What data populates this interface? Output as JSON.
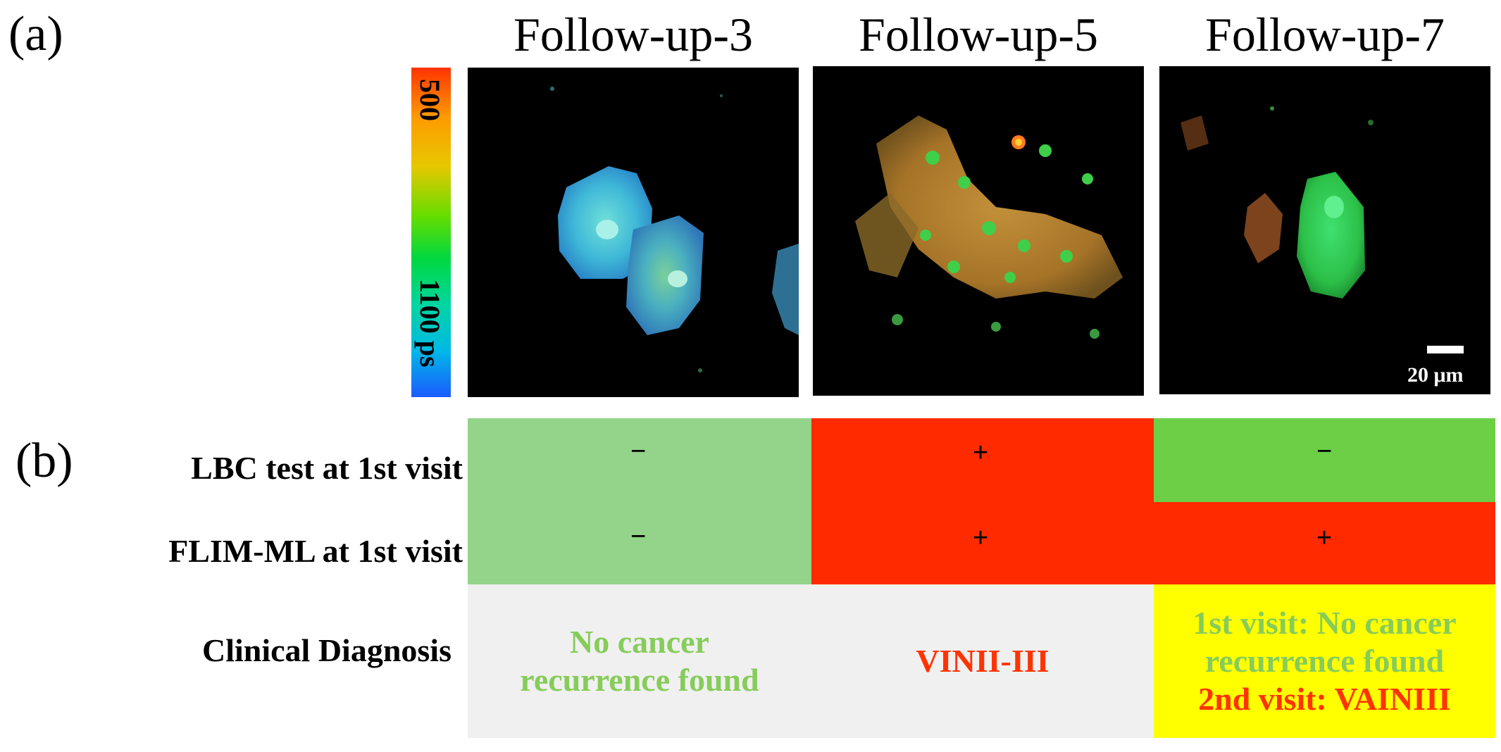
{
  "panel_a_label": "(a)",
  "panel_b_label": "(b)",
  "columns": [
    {
      "title": "Follow-up-3"
    },
    {
      "title": "Follow-up-5"
    },
    {
      "title": "Follow-up-7"
    }
  ],
  "colorbar": {
    "top_label": "500",
    "bottom_label": "1100 ps"
  },
  "scale_bar_label": "20 μm",
  "table": {
    "rows": [
      {
        "label": "LBC test at 1st visit",
        "values": [
          "−",
          "+",
          "−"
        ]
      },
      {
        "label": "FLIM-ML at 1st visit",
        "values": [
          "−",
          "+",
          "+"
        ]
      }
    ],
    "diagnosis_label": "Clinical Diagnosis",
    "diagnosis": [
      {
        "lines": [
          "No cancer",
          "recurrence found"
        ]
      },
      {
        "lines": [
          "VINII-III"
        ]
      },
      {
        "lines": [
          "1st visit: No cancer",
          "recurrence found",
          "2nd visit: VAINIII"
        ]
      }
    ]
  },
  "colors": {
    "negative_light_green": "#94d38a",
    "negative_green": "#6ccf46",
    "positive_red": "#ff2a00",
    "diagnosis_gray": "#f0f0f0",
    "diagnosis_yellow": "#ffff00",
    "green_text": "#86cc5a",
    "red_text": "#ff3300"
  }
}
